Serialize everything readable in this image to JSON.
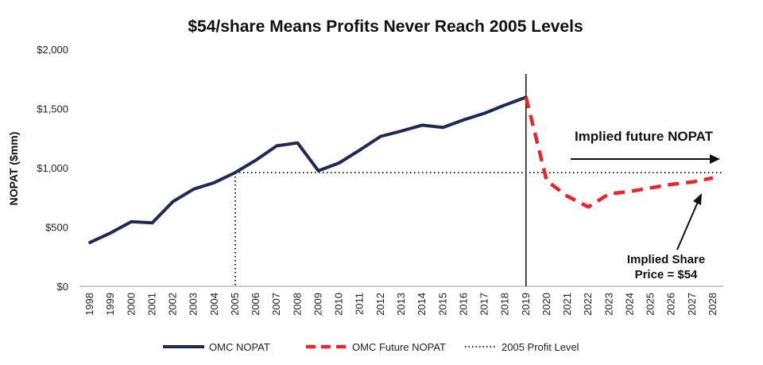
{
  "chart_data": {
    "type": "line",
    "title": "$54/share Means Profits Never Reach 2005 Levels",
    "ylabel": "NOPAT ($mm)",
    "xlabel": "",
    "ylim": [
      0,
      2000
    ],
    "yticks": [
      "$0",
      "$500",
      "$1,000",
      "$1,500",
      "$2,000"
    ],
    "ytick_values": [
      0,
      500,
      1000,
      1500,
      2000
    ],
    "categories": [
      "1998",
      "1999",
      "2000",
      "2001",
      "2002",
      "2003",
      "2004",
      "2005",
      "2006",
      "2007",
      "2008",
      "2009",
      "2010",
      "2011",
      "2012",
      "2013",
      "2014",
      "2015",
      "2016",
      "2017",
      "2018",
      "2019",
      "2020",
      "2021",
      "2022",
      "2023",
      "2024",
      "2025",
      "2026",
      "2027",
      "2028"
    ],
    "series": [
      {
        "name": "OMC NOPAT",
        "color": "#1f2a52",
        "style": "solid",
        "x": [
          "1998",
          "1999",
          "2000",
          "2001",
          "2002",
          "2003",
          "2004",
          "2005",
          "2006",
          "2007",
          "2008",
          "2009",
          "2010",
          "2011",
          "2012",
          "2013",
          "2014",
          "2015",
          "2016",
          "2017",
          "2018",
          "2019"
        ],
        "values": [
          370,
          450,
          545,
          535,
          715,
          820,
          875,
          960,
          1065,
          1185,
          1210,
          975,
          1040,
          1150,
          1265,
          1310,
          1360,
          1340,
          1405,
          1460,
          1530,
          1595
        ]
      },
      {
        "name": "OMC Future NOPAT",
        "color": "#e8262a",
        "style": "dashed",
        "x": [
          "2019",
          "2020",
          "2021",
          "2022",
          "2023",
          "2024",
          "2025",
          "2026",
          "2027",
          "2028"
        ],
        "values": [
          1595,
          890,
          760,
          670,
          780,
          800,
          830,
          860,
          880,
          915
        ]
      },
      {
        "name": "2005 Profit Level",
        "color": "#222222",
        "style": "dotted",
        "value": 960
      }
    ],
    "annotations": {
      "implied_future": "Implied future NOPAT",
      "implied_share_line1": "Implied Share",
      "implied_share_line2": "Price = $54"
    },
    "grid": false,
    "legend_position": "bottom"
  }
}
